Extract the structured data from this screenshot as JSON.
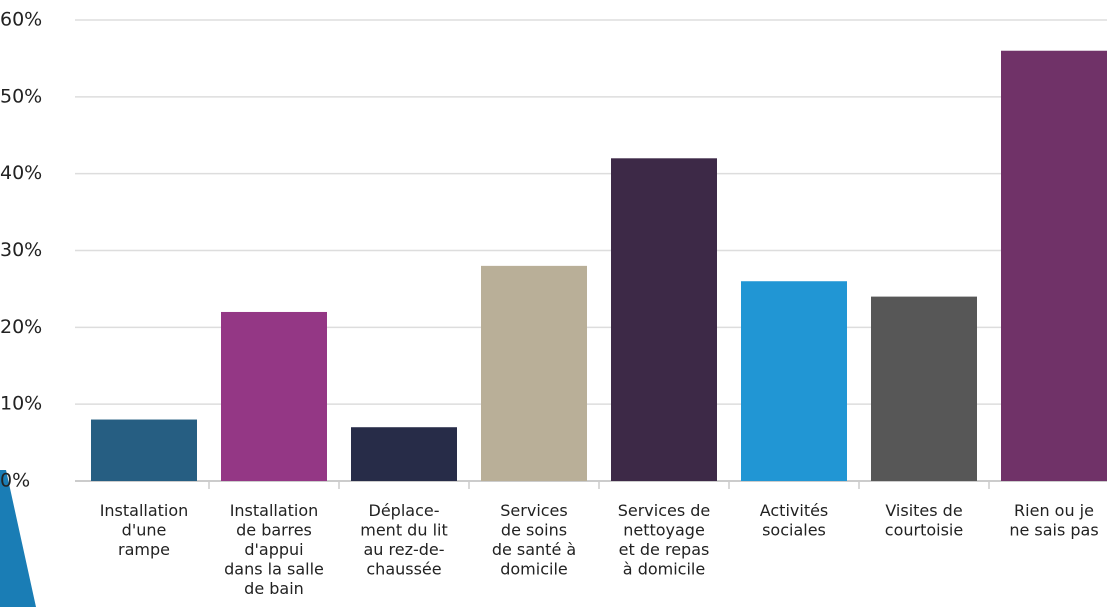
{
  "chart_data": {
    "type": "bar",
    "categories": [
      [
        "Installation",
        "d'une",
        "rampe"
      ],
      [
        "Installation",
        "de barres",
        "d'appui",
        "dans la salle",
        "de bain"
      ],
      [
        "Déplace-",
        "ment du lit",
        "au rez-de-",
        "chaussée"
      ],
      [
        "Services",
        "de soins",
        "de santé à",
        "domicile"
      ],
      [
        "Services de",
        "nettoyage",
        "et de repas",
        "à domicile"
      ],
      [
        "Activités",
        "sociales"
      ],
      [
        "Visites de",
        "courtoisie"
      ],
      [
        "Rien ou je",
        "ne sais pas"
      ]
    ],
    "values": [
      8,
      22,
      7,
      28,
      42,
      26,
      24,
      56
    ],
    "colors": [
      "#265e82",
      "#943785",
      "#272c48",
      "#b9af98",
      "#3d2947",
      "#2196d4",
      "#575757",
      "#703268"
    ],
    "ylim": [
      0,
      60
    ],
    "yticks": [
      {
        "value": 0,
        "label": "0%"
      },
      {
        "value": 10,
        "label": "10%"
      },
      {
        "value": 20,
        "label": "20%"
      },
      {
        "value": 30,
        "label": "30%"
      },
      {
        "value": 40,
        "label": "40%"
      },
      {
        "value": 50,
        "label": "50%"
      },
      {
        "value": 60,
        "label": "60%"
      }
    ],
    "grid": true
  }
}
